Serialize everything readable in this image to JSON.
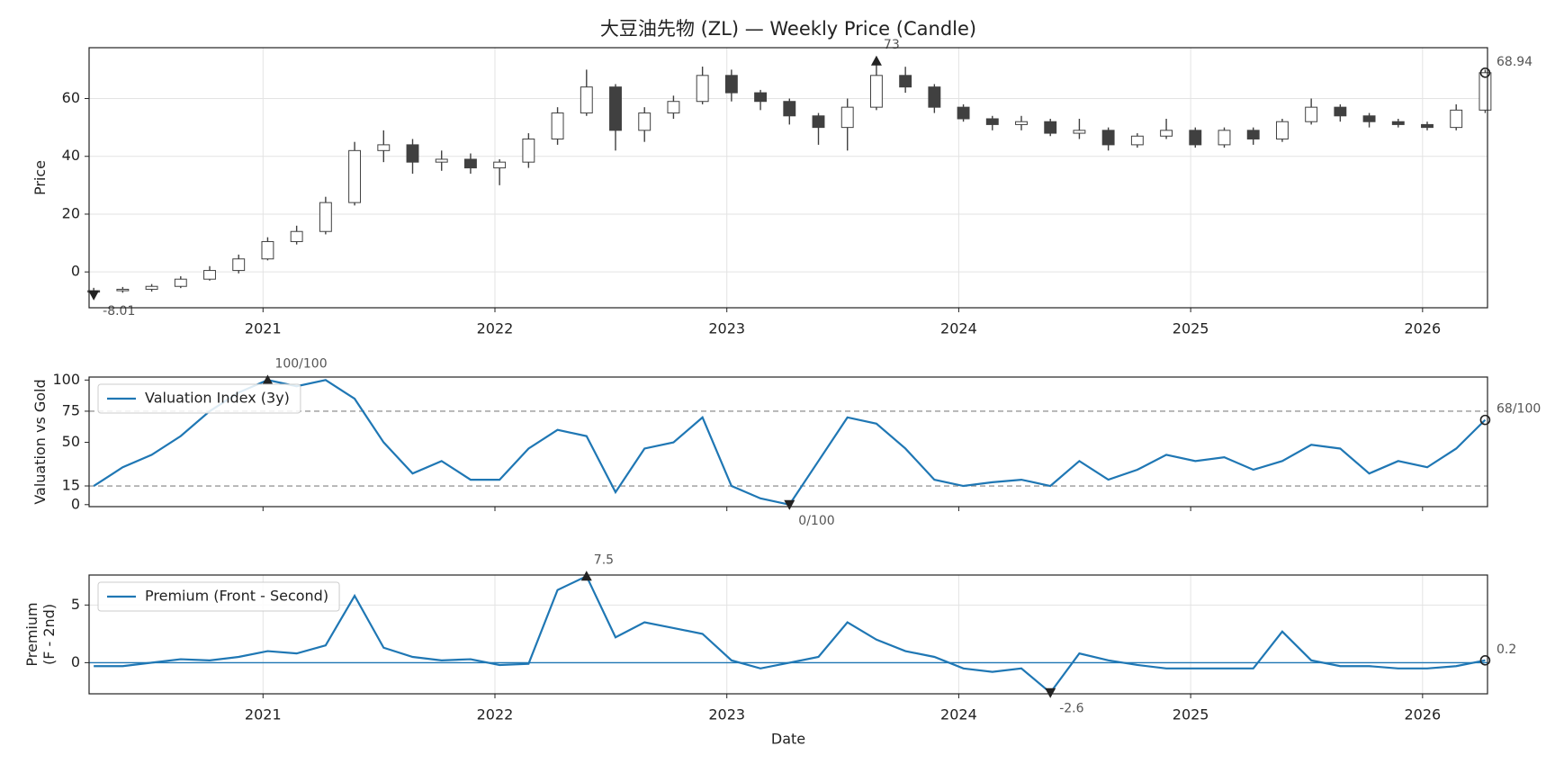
{
  "chart_data": [
    {
      "type": "candlestick",
      "title": "大豆油先物 (ZL) — Weekly Price (Candle)",
      "ylabel": [
        "Price"
      ],
      "x": [
        2020.27,
        2020.395,
        2020.52,
        2020.645,
        2020.77,
        2020.895,
        2021.02,
        2021.145,
        2021.27,
        2021.395,
        2021.52,
        2021.645,
        2021.77,
        2021.895,
        2022.02,
        2022.145,
        2022.27,
        2022.395,
        2022.52,
        2022.645,
        2022.77,
        2022.895,
        2023.02,
        2023.145,
        2023.27,
        2023.395,
        2023.52,
        2023.645,
        2023.77,
        2023.895,
        2024.02,
        2024.145,
        2024.27,
        2024.395,
        2024.52,
        2024.645,
        2024.77,
        2024.895,
        2025.02,
        2025.145,
        2025.27,
        2025.395,
        2025.52,
        2025.645,
        2025.77,
        2025.895,
        2026.02,
        2026.145,
        2026.27
      ],
      "open": [
        -6.8,
        -6.5,
        -6.0,
        -5.0,
        -2.5,
        0.5,
        4.5,
        10.5,
        14,
        24,
        42,
        44,
        38,
        39,
        36,
        38,
        46,
        55,
        64,
        49,
        55,
        59,
        68,
        62,
        59,
        54,
        50,
        57,
        68,
        64,
        57,
        53,
        51,
        52,
        48,
        49,
        44,
        47,
        49,
        44,
        49,
        46,
        52,
        57,
        54,
        52,
        51,
        50,
        56
      ],
      "high": [
        -5.5,
        -5.2,
        -4.2,
        -1.5,
        2.0,
        6.0,
        12,
        16,
        26,
        45,
        49,
        46,
        42,
        41,
        39,
        48,
        57,
        70,
        65,
        57,
        61,
        71.05,
        70,
        63,
        60,
        55,
        60,
        73,
        71,
        65,
        58,
        54,
        54,
        53,
        53,
        50,
        48,
        53,
        50,
        50,
        50,
        53,
        60,
        58,
        55,
        53,
        52,
        58,
        70
      ],
      "low": [
        -8.01,
        -7.2,
        -6.8,
        -5.6,
        -3.0,
        -0.5,
        4,
        9.5,
        13,
        23,
        38,
        34,
        35,
        34,
        30,
        36,
        44,
        54,
        42,
        45,
        53,
        58,
        59,
        56,
        51,
        44,
        42,
        56,
        62,
        55,
        52,
        49,
        49,
        47,
        46,
        42,
        43,
        46,
        43,
        43,
        44,
        45,
        51,
        52,
        50,
        50,
        49,
        49,
        55
      ],
      "close": [
        -6.5,
        -6.0,
        -5.0,
        -2.5,
        0.5,
        4.5,
        10.5,
        14,
        24,
        42,
        44,
        38,
        39,
        36,
        38,
        46,
        55,
        64,
        49,
        55,
        59,
        68,
        62,
        59,
        54,
        50,
        57,
        68,
        64,
        57,
        53,
        51,
        52,
        48,
        49,
        44,
        47,
        49,
        44,
        49,
        46,
        52,
        57,
        54,
        52,
        51,
        50,
        56,
        68.94
      ],
      "color": "#404040",
      "xlim": [
        2020.25,
        2026.28
      ],
      "xticks": [
        2021,
        2022,
        2023,
        2024,
        2025,
        2026
      ],
      "xtick_labels": true,
      "ylim": [
        -12.4,
        77.6
      ],
      "yticks": [
        0,
        20,
        40,
        60
      ],
      "grid": true,
      "annotate_extremes": true
    },
    {
      "type": "line",
      "ylabel": [
        "Valuation vs Gold"
      ],
      "x": [
        2020.27,
        2020.395,
        2020.52,
        2020.645,
        2020.77,
        2020.895,
        2021.02,
        2021.145,
        2021.27,
        2021.395,
        2021.52,
        2021.645,
        2021.77,
        2021.895,
        2022.02,
        2022.145,
        2022.27,
        2022.395,
        2022.52,
        2022.645,
        2022.77,
        2022.895,
        2023.02,
        2023.145,
        2023.27,
        2023.395,
        2023.52,
        2023.645,
        2023.77,
        2023.895,
        2024.02,
        2024.145,
        2024.27,
        2024.395,
        2024.52,
        2024.645,
        2024.77,
        2024.895,
        2025.02,
        2025.145,
        2025.27,
        2025.395,
        2025.52,
        2025.645,
        2025.77,
        2025.895,
        2026.02,
        2026.145,
        2026.27
      ],
      "series": [
        {
          "name": "Valuation Index (3y)",
          "color": "#1f77b4",
          "values": [
            15,
            30,
            40,
            55,
            75,
            90,
            100,
            95,
            100,
            85,
            50,
            25,
            35,
            20,
            20,
            45,
            60,
            55,
            10,
            45,
            50,
            70,
            15,
            5,
            0,
            35,
            70,
            65,
            45,
            20,
            15,
            18,
            20,
            15,
            35,
            20,
            28,
            40,
            35,
            38,
            28,
            35,
            48,
            45,
            25,
            35,
            30,
            45,
            68
          ],
          "value_labels": [
            null,
            null,
            null,
            null,
            null,
            null,
            "100/100",
            null,
            null,
            null,
            null,
            null,
            null,
            null,
            null,
            null,
            null,
            null,
            null,
            null,
            null,
            null,
            null,
            null,
            "0/100",
            null,
            null,
            null,
            null,
            null,
            null,
            null,
            null,
            null,
            null,
            null,
            null,
            null,
            null,
            null,
            null,
            null,
            null,
            null,
            null,
            null,
            null,
            null,
            "68/100"
          ]
        }
      ],
      "xlim": [
        2020.25,
        2026.28
      ],
      "xticks": [
        2021,
        2022,
        2023,
        2024,
        2025,
        2026
      ],
      "xtick_labels": false,
      "ylim": [
        -1.6,
        102.4
      ],
      "yticks": [
        0,
        15,
        50,
        75,
        100
      ],
      "grid": false,
      "reference_lines": [
        15,
        75
      ],
      "reference_color": "#999999",
      "legend": "upper left",
      "annotate_extremes": true
    },
    {
      "type": "line",
      "ylabel": [
        "Premium",
        "(F - 2nd)"
      ],
      "xlabel": "Date",
      "x": [
        2020.27,
        2020.395,
        2020.52,
        2020.645,
        2020.77,
        2020.895,
        2021.02,
        2021.145,
        2021.27,
        2021.395,
        2021.52,
        2021.645,
        2021.77,
        2021.895,
        2022.02,
        2022.145,
        2022.27,
        2022.395,
        2022.52,
        2022.645,
        2022.77,
        2022.895,
        2023.02,
        2023.145,
        2023.27,
        2023.395,
        2023.52,
        2023.645,
        2023.77,
        2023.895,
        2024.02,
        2024.145,
        2024.27,
        2024.395,
        2024.52,
        2024.645,
        2024.77,
        2024.895,
        2025.02,
        2025.145,
        2025.27,
        2025.395,
        2025.52,
        2025.645,
        2025.77,
        2025.895,
        2026.02,
        2026.145,
        2026.27
      ],
      "series": [
        {
          "name": "Premium (Front - Second)",
          "color": "#1f77b4",
          "values": [
            -0.3,
            -0.3,
            0,
            0.3,
            0.2,
            0.5,
            1.0,
            0.8,
            1.5,
            5.8,
            1.3,
            0.5,
            0.2,
            0.3,
            -0.2,
            -0.1,
            6.3,
            7.5,
            2.2,
            3.5,
            3.0,
            2.5,
            0.2,
            -0.5,
            0,
            0.5,
            3.5,
            2.0,
            1.0,
            0.5,
            -0.5,
            -0.8,
            -0.5,
            -2.6,
            0.8,
            0.2,
            -0.2,
            -0.5,
            -0.5,
            -0.5,
            -0.5,
            2.7,
            0.2,
            -0.3,
            -0.3,
            -0.5,
            -0.5,
            -0.3,
            0.2
          ]
        }
      ],
      "xlim": [
        2020.25,
        2026.28
      ],
      "xticks": [
        2021,
        2022,
        2023,
        2024,
        2025,
        2026
      ],
      "xtick_labels": true,
      "ylim": [
        -2.7,
        7.6
      ],
      "yticks": [
        0,
        5
      ],
      "grid": true,
      "reference_lines": [
        0
      ],
      "reference_color": "#1f77b4",
      "legend": "upper left",
      "annotate_extremes": true
    }
  ]
}
